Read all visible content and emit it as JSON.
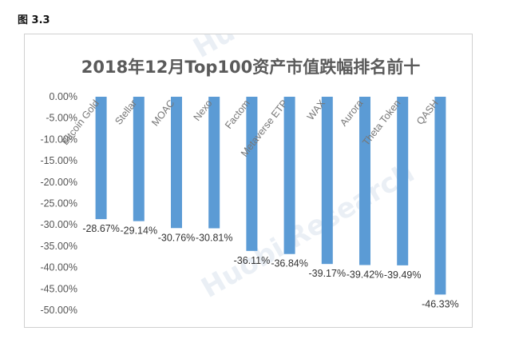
{
  "figure_label": "图 3.3",
  "watermark": "Huobi Research",
  "chart_data": {
    "type": "bar",
    "title": "2018年12月Top100资产市值跌幅排名前十",
    "xlabel": "",
    "ylabel": "",
    "ylim": [
      -50,
      0
    ],
    "yticks": [
      "0.00%",
      "-5.00%",
      "-10.00%",
      "-15.00%",
      "-20.00%",
      "-25.00%",
      "-30.00%",
      "-35.00%",
      "-40.00%",
      "-45.00%",
      "-50.00%"
    ],
    "categories": [
      "Bitcoin Gold",
      "Stellar",
      "MOAC",
      "Nexo",
      "Factom",
      "Metaverse ETP",
      "WAX",
      "Aurora",
      "Theta Token",
      "QASH"
    ],
    "values": [
      -28.67,
      -29.14,
      -30.76,
      -30.81,
      -36.11,
      -36.84,
      -39.17,
      -39.42,
      -39.49,
      -46.33
    ],
    "data_labels": [
      "-28.67%",
      "-29.14%",
      "-30.76%",
      "-30.81%",
      "-36.11%",
      "-36.84%",
      "-39.17%",
      "-39.42%",
      "-39.49%",
      "-46.33%"
    ],
    "bar_color": "#5b9bd5",
    "grid": false,
    "legend": "none"
  }
}
